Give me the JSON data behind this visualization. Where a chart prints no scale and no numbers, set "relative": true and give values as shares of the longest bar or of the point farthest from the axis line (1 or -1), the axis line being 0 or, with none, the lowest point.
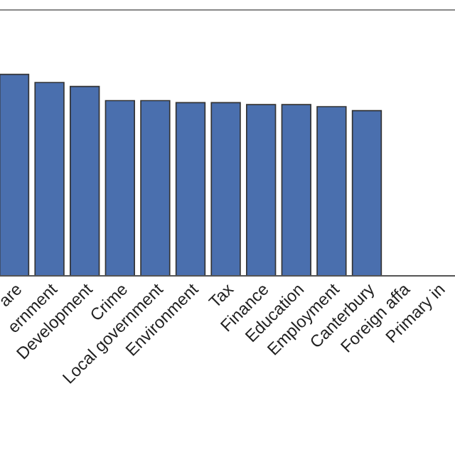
{
  "chart_data": {
    "type": "bar",
    "relative": true,
    "color": "#4a6fae",
    "categories": [
      "are",
      "ernment",
      "Development",
      "Crime",
      "Local government",
      "Environment",
      "Tax",
      "Finance",
      "Education",
      "Employment",
      "Canterbury",
      "Foreign affa",
      "Primary in"
    ],
    "values": [
      1,
      0.96,
      0.94,
      0.87,
      0.87,
      0.86,
      0.86,
      0.85,
      0.85,
      0.84,
      0.82,
      null,
      null
    ],
    "grid": false
  }
}
